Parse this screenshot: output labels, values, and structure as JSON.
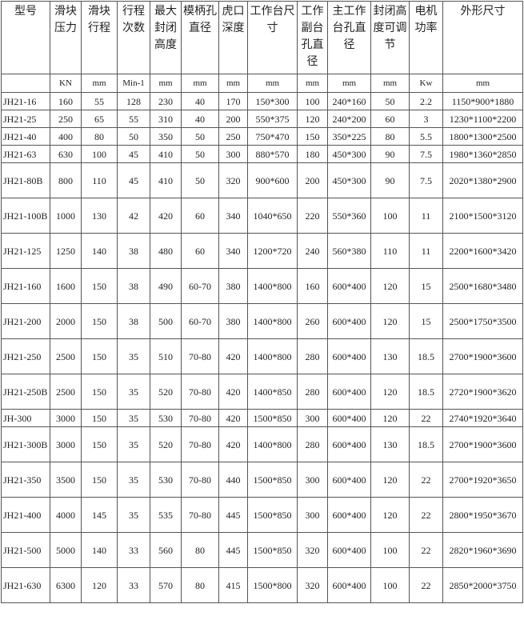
{
  "table": {
    "header": [
      "型号",
      "滑块压力",
      "滑块行程",
      "行程次数",
      "最大封闭高度",
      "模柄孔直径",
      "虎口深度",
      "工作台尺寸",
      "工作副台孔直径",
      "主工作台孔直径",
      "封闭高度可调节",
      "电机功率",
      "外形尺寸"
    ],
    "units": [
      "KN",
      "mm",
      "Min-1",
      "mm",
      "mm",
      "mm",
      "mm",
      "mm",
      "mm",
      "mm",
      "Kw",
      "mm"
    ],
    "rows": [
      [
        "JH21-16",
        "160",
        "55",
        "128",
        "230",
        "40",
        "170",
        "150*300",
        "100",
        "240*160",
        "50",
        "2.2",
        "1150*900*1880"
      ],
      [
        "JH21-25",
        "250",
        "65",
        "55",
        "310",
        "40",
        "200",
        "550*375",
        "120",
        "240*200",
        "60",
        "3",
        "1230*1100*2200"
      ],
      [
        "JH21-40",
        "400",
        "80",
        "50",
        "350",
        "50",
        "250",
        "750*470",
        "150",
        "350*225",
        "80",
        "5.5",
        "1800*1300*2500"
      ],
      [
        "JH21-63",
        "630",
        "100",
        "45",
        "410",
        "50",
        "300",
        "880*570",
        "180",
        "450*300",
        "90",
        "7.5",
        "1980*1360*2850"
      ],
      [
        "JH21-80B",
        "800",
        "110",
        "45",
        "410",
        "50",
        "320",
        "900*600",
        "200",
        "450*300",
        "90",
        "7.5",
        "2020*1380*2900"
      ],
      [
        "JH21-100B",
        "1000",
        "130",
        "42",
        "420",
        "60",
        "340",
        "1040*650",
        "220",
        "550*360",
        "100",
        "11",
        "2100*1500*3120"
      ],
      [
        "JH21-125",
        "1250",
        "140",
        "38",
        "480",
        "60",
        "340",
        "1200*720",
        "240",
        "560*380",
        "110",
        "11",
        "2200*1600*3420"
      ],
      [
        "JH21-160",
        "1600",
        "150",
        "38",
        "490",
        "60-70",
        "380",
        "1400*800",
        "160",
        "600*400",
        "120",
        "15",
        "2500*1680*3480"
      ],
      [
        "JH21-200",
        "2000",
        "150",
        "38",
        "500",
        "60-70",
        "380",
        "1400*800",
        "260",
        "600*400",
        "120",
        "15",
        "2500*1750*3500"
      ],
      [
        "JH21-250",
        "2500",
        "150",
        "35",
        "510",
        "70-80",
        "420",
        "1400*800",
        "280",
        "600*400",
        "130",
        "18.5",
        "2700*1900*3600"
      ],
      [
        "JH21-250B",
        "2500",
        "150",
        "35",
        "520",
        "70-80",
        "420",
        "1400*850",
        "280",
        "600*400",
        "120",
        "18.5",
        "2720*1900*3620"
      ],
      [
        "JH-300",
        "3000",
        "150",
        "35",
        "530",
        "70-80",
        "420",
        "1500*850",
        "300",
        "600*400",
        "120",
        "22",
        "2740*1920*3640"
      ],
      [
        "JH21-300B",
        "3000",
        "150",
        "35",
        "520",
        "70-80",
        "420",
        "1400*800",
        "280",
        "600*400",
        "130",
        "18.5",
        "2700*1900*3600"
      ],
      [
        "JH21-350",
        "3500",
        "150",
        "35",
        "530",
        "70-80",
        "440",
        "1500*850",
        "300",
        "600*400",
        "120",
        "22",
        "2700*1920*3650"
      ],
      [
        "JH21-400",
        "4000",
        "145",
        "35",
        "535",
        "70-80",
        "445",
        "1500*850",
        "300",
        "600*400",
        "120",
        "22",
        "2800*1950*3670"
      ],
      [
        "JH21-500",
        "5000",
        "140",
        "33",
        "560",
        "80",
        "445",
        "1500*850",
        "320",
        "600*400",
        "100",
        "22",
        "2820*1960*3690"
      ],
      [
        "JH21-630",
        "6300",
        "120",
        "33",
        "570",
        "80",
        "415",
        "1500*800",
        "320",
        "600*400",
        "100",
        "22",
        "2850*2000*3750"
      ]
    ]
  }
}
